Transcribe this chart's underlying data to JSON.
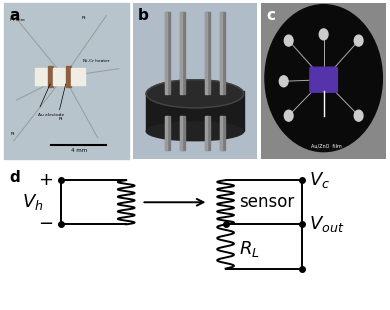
{
  "panel_label_fontsize": 11,
  "background_color": "#ffffff",
  "panel_a_bg": "#b8c4cc",
  "panel_b_bg": "#b0bcc8",
  "panel_c_bg": "#888888",
  "circuit": {
    "Vh_label": "$V_h$",
    "Vc_label": "$V_c$",
    "Vout_label": "$V_{out}$",
    "RL_label": "$R_L$",
    "sensor_label": "sensor",
    "plus_label": "+",
    "minus_label": "-"
  },
  "annotations_a": {
    "Pt_wire": "Pt wire",
    "Pt1": "Pt",
    "Pt2": "Pt",
    "Pt3": "Pt",
    "NiCr": "Ni-Cr heater",
    "Au": "Au electode",
    "scale": "4 mm"
  },
  "annotations_c": {
    "film": "Au/ZnO  film"
  },
  "lw": 1.4
}
